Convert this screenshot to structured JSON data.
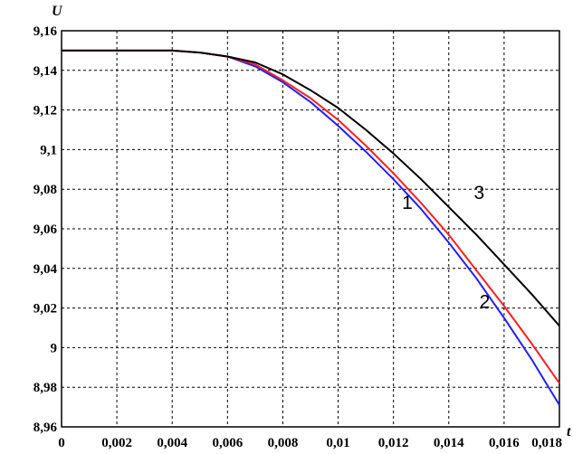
{
  "chart_data": {
    "type": "line",
    "title": "",
    "ylabel": "U",
    "xlabel": "t",
    "xlim": [
      0,
      0.018
    ],
    "ylim": [
      8.96,
      9.16
    ],
    "grid": true,
    "x_ticks": [
      "0",
      "0,002",
      "0,004",
      "0,006",
      "0,008",
      "0,01",
      "0,012",
      "0,014",
      "0,016",
      "0,018"
    ],
    "y_ticks": [
      "8,96",
      "8,98",
      "9",
      "9,02",
      "9,04",
      "9,06",
      "9,08",
      "9,1",
      "9,12",
      "9,14",
      "9,16"
    ],
    "x": [
      0,
      0.001,
      0.002,
      0.003,
      0.004,
      0.005,
      0.006,
      0.007,
      0.008,
      0.009,
      0.01,
      0.011,
      0.012,
      0.013,
      0.014,
      0.015,
      0.016,
      0.017,
      0.018
    ],
    "series": [
      {
        "label": "1",
        "color": "#1f1fff",
        "values": [
          9.15,
          9.15,
          9.15,
          9.15,
          9.15,
          9.149,
          9.147,
          9.142,
          9.134,
          9.124,
          9.112,
          9.099,
          9.085,
          9.07,
          9.053,
          9.035,
          9.015,
          8.994,
          8.971
        ]
      },
      {
        "label": "2",
        "color": "#ff1f1f",
        "values": [
          9.15,
          9.15,
          9.15,
          9.15,
          9.15,
          9.149,
          9.147,
          9.143,
          9.135,
          9.126,
          9.115,
          9.102,
          9.088,
          9.073,
          9.057,
          9.039,
          9.021,
          9.002,
          8.982
        ]
      },
      {
        "label": "3",
        "color": "#000000",
        "values": [
          9.15,
          9.15,
          9.15,
          9.15,
          9.15,
          9.149,
          9.147,
          9.144,
          9.138,
          9.13,
          9.121,
          9.11,
          9.098,
          9.085,
          9.071,
          9.057,
          9.042,
          9.027,
          9.011
        ]
      }
    ],
    "curve_labels": [
      {
        "text": "1",
        "x": 0.0125,
        "y": 9.07
      },
      {
        "text": "2",
        "x": 0.0153,
        "y": 9.02
      },
      {
        "text": "3",
        "x": 0.0151,
        "y": 9.075
      }
    ]
  }
}
